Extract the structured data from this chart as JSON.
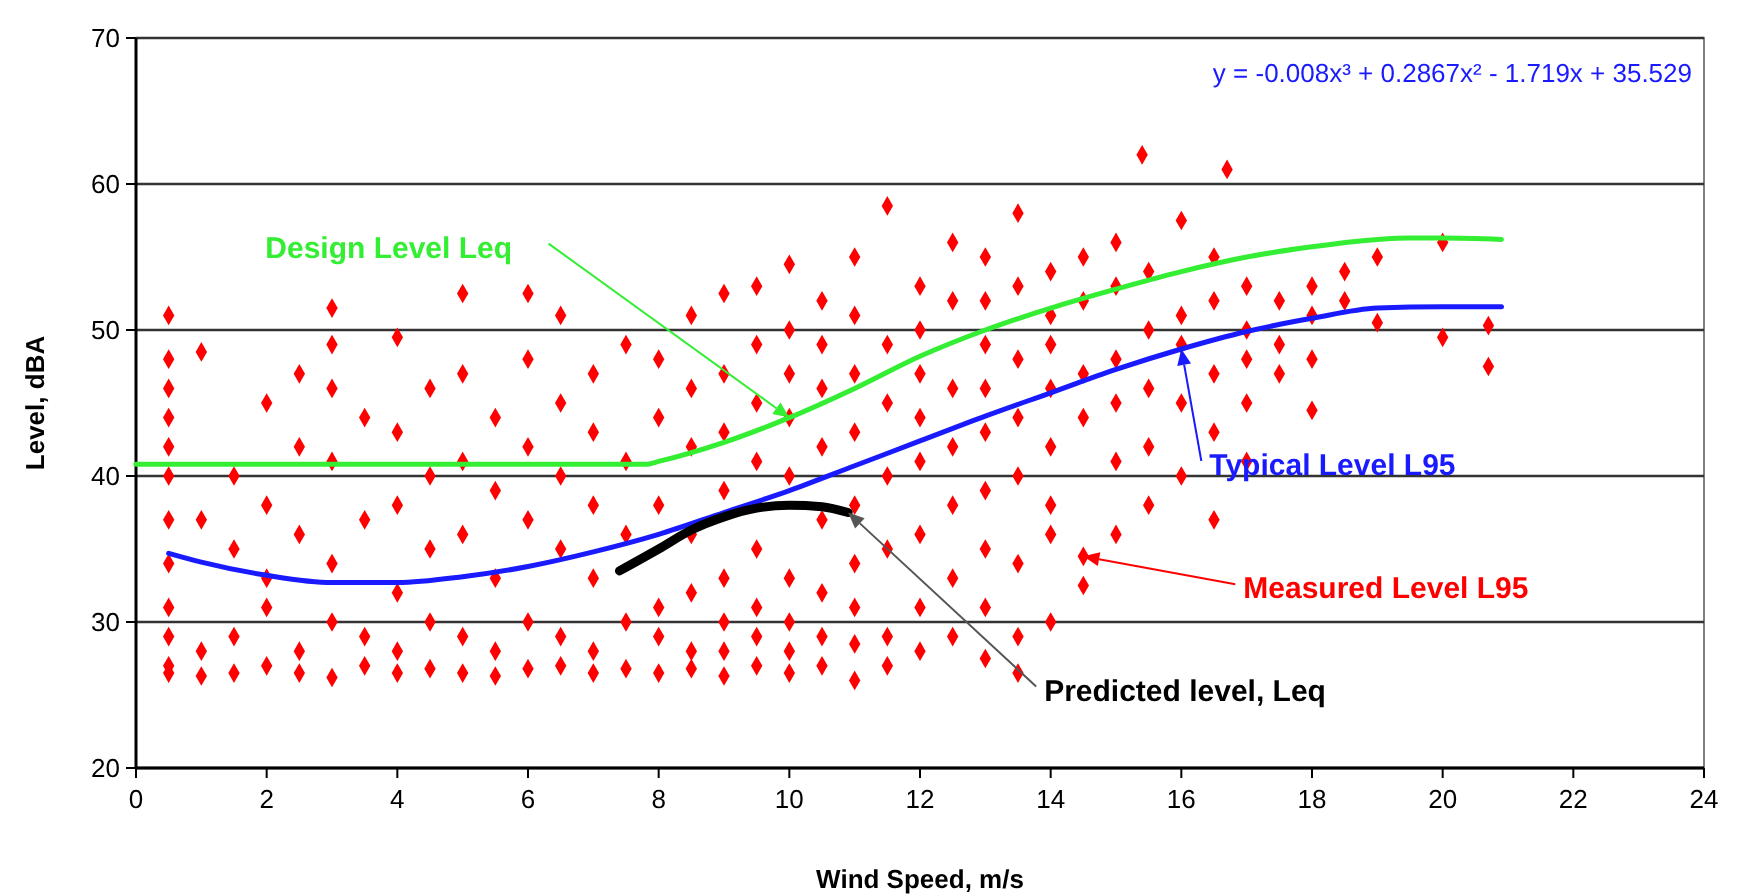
{
  "chart_data": {
    "type": "scatter",
    "xlabel": "Wind Speed, m/s",
    "ylabel": "Level, dBA",
    "annotations": [
      "y = -0.008x³ + 0.2867x² - 1.719x + 35.529"
    ],
    "xlim": [
      0,
      24
    ],
    "ylim": [
      20,
      70
    ],
    "xticks": [
      0,
      2,
      4,
      6,
      8,
      10,
      12,
      14,
      16,
      18,
      20,
      22,
      24
    ],
    "yticks": [
      20,
      30,
      40,
      50,
      60,
      70
    ],
    "grid": "y",
    "series": [
      {
        "name": "Measured Level L95",
        "color": "#ff0000",
        "type": "scatter",
        "marker": "diamond",
        "x": [
          14.5,
          0.5,
          0.5,
          0.5,
          0.5,
          0.5,
          0.5,
          0.5,
          0.5,
          0.5,
          0.5,
          0.5,
          0.5,
          1,
          1,
          1,
          1,
          1.5,
          1.5,
          1.5,
          1.5,
          2,
          2,
          2,
          2,
          2,
          2.5,
          2.5,
          2.5,
          2.5,
          2.5,
          3,
          3,
          3,
          3,
          3,
          3,
          3,
          3.5,
          3.5,
          3.5,
          3.5,
          4,
          4,
          4,
          4,
          4,
          4,
          4.5,
          4.5,
          4.5,
          4.5,
          4.5,
          5,
          5,
          5,
          5,
          5,
          5,
          5.5,
          5.5,
          5.5,
          5.5,
          5.5,
          6,
          6,
          6,
          6,
          6,
          6,
          6.5,
          6.5,
          6.5,
          6.5,
          6.5,
          6.5,
          7,
          7,
          7,
          7,
          7,
          7,
          7.5,
          7.5,
          7.5,
          7.5,
          7.5,
          8,
          8,
          8,
          8,
          8,
          8,
          8.5,
          8.5,
          8.5,
          8.5,
          8.5,
          8.5,
          8.5,
          9,
          9,
          9,
          9,
          9,
          9,
          9,
          9,
          9.5,
          9.5,
          9.5,
          9.5,
          9.5,
          9.5,
          9.5,
          9.5,
          10,
          10,
          10,
          10,
          10,
          10,
          10,
          10,
          10,
          10.5,
          10.5,
          10.5,
          10.5,
          10.5,
          10.5,
          10.5,
          10.5,
          11,
          11,
          11,
          11,
          11,
          11,
          11,
          11,
          11,
          11.5,
          11.5,
          11.5,
          11.5,
          11.5,
          11.5,
          11.5,
          12,
          12,
          12,
          12,
          12,
          12,
          12,
          12,
          12.5,
          12.5,
          12.5,
          12.5,
          12.5,
          12.5,
          12.5,
          13,
          13,
          13,
          13,
          13,
          13,
          13,
          13,
          13,
          13.5,
          13.5,
          13.5,
          13.5,
          13.5,
          13.5,
          13.5,
          13.5,
          14,
          14,
          14,
          14,
          14,
          14,
          14,
          14,
          14.5,
          14.5,
          14.5,
          14.5,
          14.5,
          15,
          15,
          15,
          15,
          15,
          15,
          15.4,
          15.5,
          15.5,
          15.5,
          15.5,
          15.5,
          16,
          16,
          16,
          16,
          16,
          16.5,
          16.5,
          16.5,
          16.5,
          16.5,
          16.7,
          17,
          17,
          17,
          17,
          17,
          17.5,
          17.5,
          17.5,
          18,
          18,
          18,
          18,
          18.5,
          18.5,
          19,
          19,
          20,
          20,
          20.7,
          20.7
        ],
        "values": [
          34.5,
          26.5,
          27,
          29,
          31,
          34,
          37,
          40,
          42,
          44,
          46,
          48,
          51,
          26.3,
          28,
          37,
          48.5,
          26.5,
          29,
          35,
          40,
          27,
          31,
          33,
          38,
          45,
          26.5,
          28,
          36,
          42,
          47,
          26.2,
          30,
          34,
          41,
          46,
          49,
          51.5,
          27,
          29,
          37,
          44,
          26.5,
          28,
          32,
          38,
          43,
          49.5,
          26.8,
          30,
          35,
          40,
          46,
          26.5,
          29,
          36,
          41,
          47,
          52.5,
          26.3,
          28,
          33,
          39,
          44,
          26.8,
          30,
          37,
          42,
          48,
          52.5,
          27,
          29,
          35,
          40,
          45,
          51,
          26.5,
          28,
          33,
          38,
          43,
          47,
          26.8,
          30,
          36,
          41,
          49,
          26.5,
          29,
          31,
          38,
          44,
          48,
          26.8,
          28,
          32,
          36,
          42,
          46,
          51,
          26.3,
          28,
          30,
          33,
          39,
          43,
          47,
          52.5,
          27,
          29,
          31,
          35,
          41,
          45,
          49,
          53,
          26.5,
          28,
          30,
          33,
          40,
          44,
          47,
          50,
          54.5,
          27,
          29,
          32,
          37,
          42,
          46,
          49,
          52,
          26,
          28.5,
          31,
          34,
          38,
          43,
          47,
          51,
          55,
          27,
          29,
          35,
          40,
          45,
          49,
          58.5,
          28,
          31,
          36,
          41,
          44,
          47,
          50,
          53,
          29,
          33,
          38,
          42,
          46,
          52,
          56,
          27.5,
          31,
          35,
          39,
          43,
          46,
          49,
          52,
          55,
          26.5,
          29,
          34,
          40,
          44,
          48,
          53,
          58,
          30,
          36,
          38,
          42,
          46,
          49,
          51,
          54,
          32.5,
          44,
          47,
          52,
          55,
          36,
          41,
          45,
          48,
          53,
          56,
          62,
          38,
          42,
          46,
          50,
          54,
          40,
          45,
          49,
          51,
          57.5,
          37,
          43,
          47,
          52,
          55,
          61,
          41,
          45,
          48,
          50,
          53,
          47,
          49,
          52,
          44.5,
          48,
          51,
          53,
          52,
          54,
          50.5,
          55,
          49.5,
          56,
          47.5,
          50.3
        ]
      },
      {
        "name": "Design Level Leq",
        "color": "#33ee33",
        "type": "line",
        "x": [
          0,
          1,
          2,
          3,
          4,
          5,
          6,
          7,
          7.8,
          8,
          9,
          10,
          11,
          12,
          13,
          14,
          15,
          16,
          17,
          18,
          19,
          19.5,
          20,
          20.9
        ],
        "values": [
          40.8,
          40.8,
          40.8,
          40.8,
          40.8,
          40.8,
          40.8,
          40.8,
          40.8,
          41,
          42.3,
          44,
          46,
          48.2,
          50,
          51.5,
          52.8,
          54,
          55,
          55.7,
          56.2,
          56.3,
          56.3,
          56.2
        ]
      },
      {
        "name": "Typical Level L95",
        "color": "#1a1aff",
        "type": "line",
        "x": [
          0.5,
          1,
          2,
          3,
          4,
          5,
          6,
          7,
          8,
          9,
          10,
          11,
          12,
          13,
          14,
          15,
          16,
          17,
          18,
          19,
          20,
          20.9
        ],
        "values": [
          34.7,
          34.1,
          33.2,
          32.7,
          32.7,
          33.1,
          33.8,
          34.8,
          36,
          37.5,
          39,
          40.7,
          42.4,
          44.1,
          45.7,
          47.3,
          48.7,
          49.9,
          50.8,
          51.5,
          51.6,
          51.6
        ]
      },
      {
        "name": "Predicted level, Leq",
        "color": "#000000",
        "type": "line",
        "x": [
          7.4,
          8,
          8.5,
          9,
          9.5,
          10,
          10.5,
          10.9
        ],
        "values": [
          33.5,
          35,
          36.3,
          37.2,
          37.8,
          38,
          37.9,
          37.5
        ]
      }
    ]
  }
}
